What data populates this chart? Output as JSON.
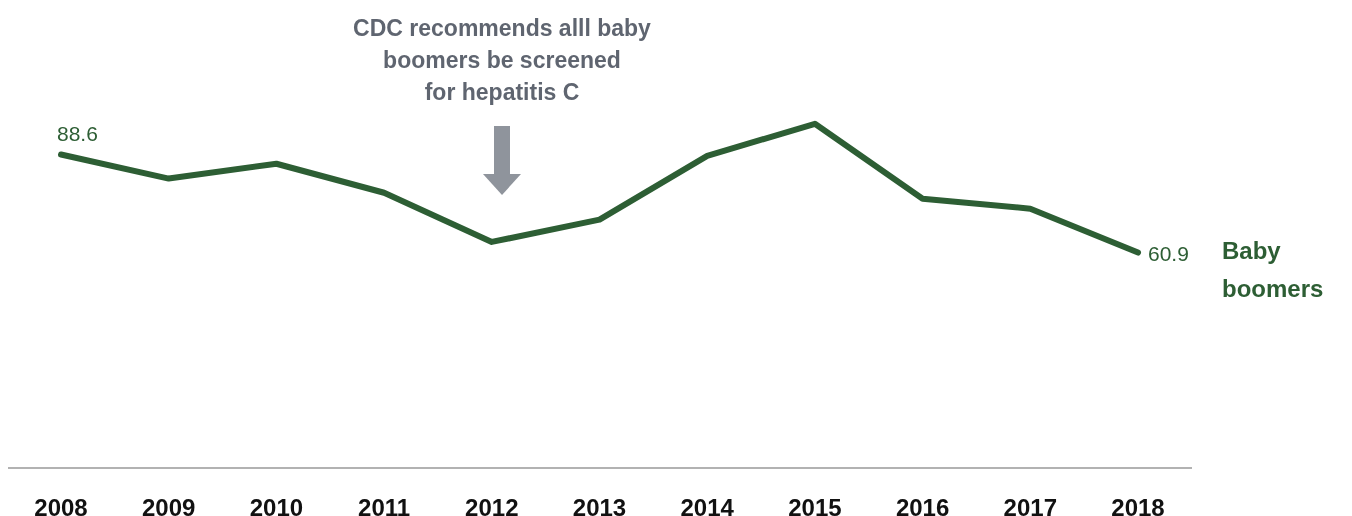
{
  "chart_data": {
    "type": "line",
    "categories": [
      "2008",
      "2009",
      "2010",
      "2011",
      "2012",
      "2013",
      "2014",
      "2015",
      "2016",
      "2017",
      "2018"
    ],
    "series": [
      {
        "name": "Baby boomers",
        "color": "#2d5e34",
        "values": [
          88.6,
          81.8,
          86.0,
          77.8,
          63.9,
          70.2,
          88.2,
          97.3,
          76.1,
          73.3,
          60.9
        ],
        "value_labels": [
          "88.6",
          null,
          null,
          null,
          null,
          null,
          null,
          null,
          null,
          null,
          "60.9"
        ]
      }
    ],
    "tick_labels": "x",
    "marker": "none",
    "line_style": "solid",
    "annotations": [
      "CDC recommends alll baby\nboomers be screened\nfor hepatitis C"
    ]
  }
}
